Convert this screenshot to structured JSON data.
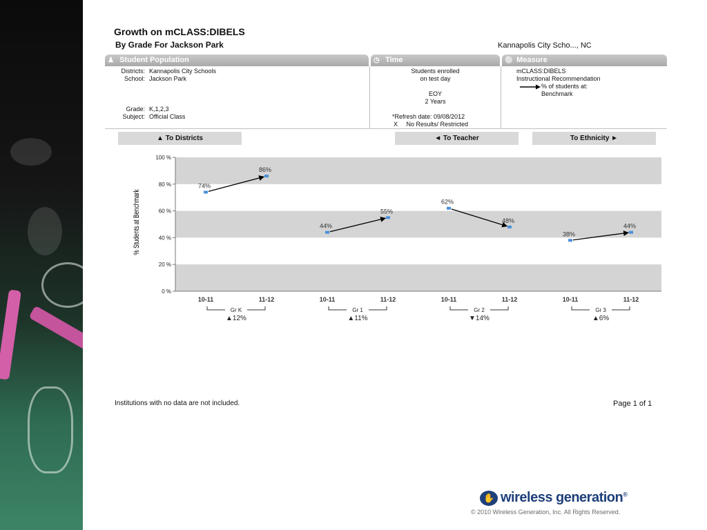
{
  "report": {
    "title": "Growth on mCLASS:DIBELS",
    "subtitle": "By Grade  For Jackson Park",
    "district_short": "Kannapolis City Scho..., NC"
  },
  "panels": {
    "population": {
      "header": "Student Population",
      "icon": "people-icon",
      "districts_label": "Districts:",
      "districts_value": "Kannapolis City Schools",
      "school_label": "School:",
      "school_value": "Jackson Park",
      "grade_label": "Grade:",
      "grade_value": "K,1,2,3",
      "subject_label": "Subject:",
      "subject_value": "Official Class"
    },
    "time": {
      "header": "Time",
      "icon": "clock-icon",
      "line1": "Students enrolled",
      "line2": "on test day",
      "period": "EOY",
      "span": "2 Years",
      "refresh": "*Refresh date: 09/08/2012",
      "no_results_mark": "X",
      "no_results": "No Results/ Restricted"
    },
    "measure": {
      "header": "Measure",
      "icon": "thermometer-icon",
      "line1": "mCLASS:DIBELS",
      "line2": "Instructional Recommendation",
      "line3": "% of students at:",
      "line4": "Benchmark"
    }
  },
  "nav": {
    "to_districts": "▲ To Districts",
    "to_teacher": "◄ To Teacher",
    "to_ethnicity": "To Ethnicity ►"
  },
  "chart_data": {
    "type": "line",
    "ylabel": "% Students at Benchmark",
    "ylim": [
      0,
      100
    ],
    "yticks": [
      0,
      20,
      40,
      60,
      80,
      100
    ],
    "ytick_labels": [
      "0 %",
      "20 %",
      "40 %",
      "60 %",
      "80 %",
      "100 %"
    ],
    "series_color": "#4a90d9",
    "band_color": "#d4d4d4",
    "groups": [
      {
        "name": "Gr K",
        "x": [
          "10-11",
          "11-12"
        ],
        "values": [
          74,
          86
        ],
        "labels": [
          "74%",
          "86%"
        ],
        "change": "▲12%"
      },
      {
        "name": "Gr 1",
        "x": [
          "10-11",
          "11-12"
        ],
        "values": [
          44,
          55
        ],
        "labels": [
          "44%",
          "55%"
        ],
        "change": "▲11%"
      },
      {
        "name": "Gr 2",
        "x": [
          "10-11",
          "11-12"
        ],
        "values": [
          62,
          48
        ],
        "labels": [
          "62%",
          "48%"
        ],
        "change": "▼14%"
      },
      {
        "name": "Gr 3",
        "x": [
          "10-11",
          "11-12"
        ],
        "values": [
          38,
          44
        ],
        "labels": [
          "38%",
          "44%"
        ],
        "change": "▲6%"
      }
    ]
  },
  "footer": {
    "note": "Institutions with no data are not included.",
    "page": "Page 1 of 1",
    "brand": "wireless generation",
    "brand_mark": "®",
    "copyright": "© 2010 Wireless Generation, Inc. All Rights Reserved."
  }
}
